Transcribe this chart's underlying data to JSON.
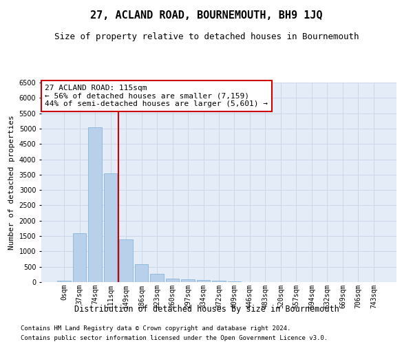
{
  "title": "27, ACLAND ROAD, BOURNEMOUTH, BH9 1JQ",
  "subtitle": "Size of property relative to detached houses in Bournemouth",
  "xlabel": "Distribution of detached houses by size in Bournemouth",
  "ylabel": "Number of detached properties",
  "footnote1": "Contains HM Land Registry data © Crown copyright and database right 2024.",
  "footnote2": "Contains public sector information licensed under the Open Government Licence v3.0.",
  "annotation_line1": "27 ACLAND ROAD: 115sqm",
  "annotation_line2": "← 56% of detached houses are smaller (7,159)",
  "annotation_line3": "44% of semi-detached houses are larger (5,601) →",
  "bar_color": "#b8d0ea",
  "bar_edge_color": "#7aaed4",
  "vline_color": "#cc0000",
  "categories": [
    "0sqm",
    "37sqm",
    "74sqm",
    "111sqm",
    "149sqm",
    "186sqm",
    "223sqm",
    "260sqm",
    "297sqm",
    "334sqm",
    "372sqm",
    "409sqm",
    "446sqm",
    "483sqm",
    "520sqm",
    "557sqm",
    "594sqm",
    "632sqm",
    "669sqm",
    "706sqm",
    "743sqm"
  ],
  "values": [
    50,
    1600,
    5050,
    3550,
    1400,
    580,
    270,
    120,
    90,
    70,
    50,
    15,
    10,
    0,
    0,
    0,
    0,
    0,
    0,
    0,
    0
  ],
  "ylim": [
    0,
    6500
  ],
  "yticks": [
    0,
    500,
    1000,
    1500,
    2000,
    2500,
    3000,
    3500,
    4000,
    4500,
    5000,
    5500,
    6000,
    6500
  ],
  "grid_color": "#c8d4e8",
  "bg_color": "#e4ecf8",
  "fig_bg_color": "#ffffff",
  "title_fontsize": 11,
  "subtitle_fontsize": 9,
  "xlabel_fontsize": 8.5,
  "ylabel_fontsize": 8,
  "tick_fontsize": 7,
  "annotation_fontsize": 8,
  "footnote_fontsize": 6.5,
  "vline_bar_index": 3
}
